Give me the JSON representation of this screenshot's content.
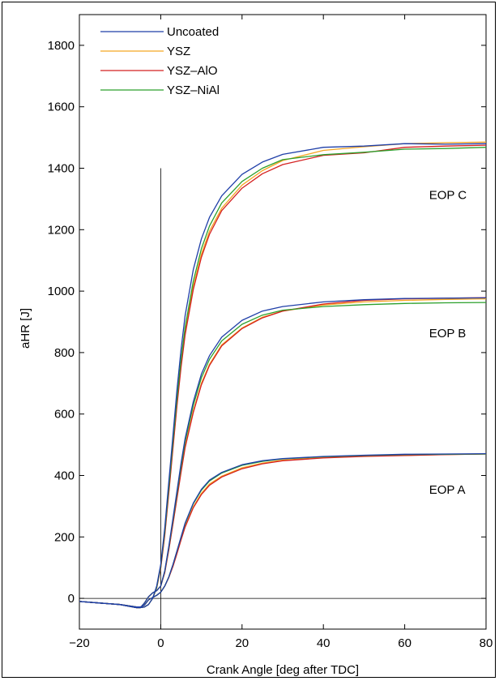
{
  "chart_data": {
    "type": "line",
    "xlabel": "Crank Angle [deg after TDC]",
    "ylabel": "aHR [J]",
    "xlim": [
      -20,
      80
    ],
    "ylim": [
      -100,
      1900
    ],
    "xticks": [
      -20,
      0,
      20,
      40,
      60,
      80
    ],
    "yticks": [
      0,
      200,
      400,
      600,
      800,
      1000,
      1200,
      1400,
      1600,
      1800
    ],
    "grid": false,
    "legend_position": "top-left",
    "reference_lines": [
      {
        "orientation": "horizontal",
        "value": 0
      },
      {
        "orientation": "vertical",
        "value": 0,
        "y_range": [
          -100,
          1400
        ]
      }
    ],
    "annotations": [
      {
        "text": "EOP C",
        "x": 66,
        "y": 1300
      },
      {
        "text": "EOP B",
        "x": 66,
        "y": 850
      },
      {
        "text": "EOP A",
        "x": 66,
        "y": 340
      }
    ],
    "series": [
      {
        "name": "Uncoated",
        "color": "#1f3fa8",
        "group": "EOP A",
        "x": [
          -20,
          -10,
          -6,
          -5,
          -4,
          -3,
          -2,
          -1,
          0,
          1,
          2,
          3,
          4,
          5,
          6,
          8,
          10,
          12,
          15,
          20,
          25,
          30,
          40,
          50,
          60,
          70,
          80
        ],
        "y": [
          -10,
          -20,
          -28,
          -28,
          -22,
          -5,
          3,
          10,
          20,
          40,
          70,
          110,
          155,
          200,
          245,
          310,
          355,
          385,
          410,
          435,
          448,
          455,
          462,
          466,
          469,
          470,
          471
        ]
      },
      {
        "name": "YSZ",
        "color": "#f5a623",
        "group": "EOP A",
        "x": [
          -20,
          -10,
          -6,
          -5,
          -4,
          -3,
          -2,
          -1,
          0,
          1,
          2,
          3,
          4,
          5,
          6,
          8,
          10,
          12,
          15,
          20,
          25,
          30,
          40,
          50,
          60,
          70,
          80
        ],
        "y": [
          -10,
          -20,
          -28,
          -28,
          -22,
          -5,
          3,
          10,
          20,
          40,
          68,
          105,
          148,
          192,
          235,
          298,
          342,
          372,
          398,
          425,
          440,
          450,
          458,
          463,
          466,
          468,
          470
        ]
      },
      {
        "name": "YSZ–AlO",
        "color": "#d42020",
        "group": "EOP A",
        "x": [
          -20,
          -10,
          -6,
          -5,
          -4,
          -3,
          -2,
          -1,
          0,
          1,
          2,
          3,
          4,
          5,
          6,
          8,
          10,
          12,
          15,
          20,
          25,
          30,
          40,
          50,
          60,
          70,
          80
        ],
        "y": [
          -10,
          -20,
          -28,
          -28,
          -22,
          -5,
          3,
          10,
          20,
          40,
          68,
          104,
          146,
          190,
          232,
          295,
          338,
          368,
          395,
          422,
          438,
          448,
          457,
          462,
          465,
          468,
          470
        ]
      },
      {
        "name": "YSZ–NiAl",
        "color": "#2ca02c",
        "group": "EOP A",
        "x": [
          -20,
          -10,
          -6,
          -5,
          -4,
          -3,
          -2,
          -1,
          0,
          1,
          2,
          3,
          4,
          5,
          6,
          8,
          10,
          12,
          15,
          20,
          25,
          30,
          40,
          50,
          60,
          70,
          80
        ],
        "y": [
          -10,
          -20,
          -28,
          -28,
          -22,
          -5,
          3,
          10,
          20,
          40,
          70,
          110,
          154,
          199,
          243,
          308,
          352,
          382,
          408,
          433,
          446,
          454,
          461,
          465,
          468,
          469,
          470
        ]
      },
      {
        "name": "",
        "color": "#1f3fa8",
        "group": "EOP B",
        "x": [
          -20,
          -10,
          -6,
          -5,
          -4,
          -3,
          -2,
          -1,
          0,
          1,
          2,
          3,
          4,
          5,
          6,
          8,
          10,
          12,
          15,
          20,
          25,
          30,
          40,
          50,
          60,
          70,
          80
        ],
        "y": [
          -10,
          -20,
          -30,
          -30,
          -15,
          5,
          18,
          25,
          40,
          90,
          170,
          260,
          350,
          440,
          520,
          640,
          730,
          790,
          850,
          905,
          935,
          950,
          965,
          972,
          976,
          977,
          978
        ]
      },
      {
        "name": "",
        "color": "#f5a623",
        "group": "EOP B",
        "x": [
          -20,
          -10,
          -6,
          -5,
          -4,
          -3,
          -2,
          -1,
          0,
          1,
          2,
          3,
          4,
          5,
          6,
          8,
          10,
          12,
          15,
          20,
          25,
          30,
          40,
          50,
          60,
          70,
          80
        ],
        "y": [
          -10,
          -20,
          -30,
          -30,
          -15,
          5,
          18,
          25,
          40,
          85,
          160,
          245,
          330,
          415,
          495,
          610,
          700,
          762,
          825,
          880,
          915,
          935,
          955,
          965,
          970,
          973,
          975
        ]
      },
      {
        "name": "",
        "color": "#d42020",
        "group": "EOP B",
        "x": [
          -20,
          -10,
          -6,
          -5,
          -4,
          -3,
          -2,
          -1,
          0,
          1,
          2,
          3,
          4,
          5,
          6,
          8,
          10,
          12,
          15,
          20,
          25,
          30,
          40,
          50,
          60,
          70,
          80
        ],
        "y": [
          -10,
          -20,
          -30,
          -30,
          -15,
          5,
          18,
          25,
          40,
          84,
          158,
          242,
          326,
          410,
          490,
          605,
          695,
          758,
          822,
          878,
          913,
          935,
          958,
          970,
          975,
          977,
          979
        ]
      },
      {
        "name": "",
        "color": "#2ca02c",
        "group": "EOP B",
        "x": [
          -20,
          -10,
          -6,
          -5,
          -4,
          -3,
          -2,
          -1,
          0,
          1,
          2,
          3,
          4,
          5,
          6,
          8,
          10,
          12,
          15,
          20,
          25,
          30,
          40,
          50,
          60,
          70,
          80
        ],
        "y": [
          -10,
          -20,
          -30,
          -30,
          -15,
          5,
          18,
          25,
          40,
          88,
          166,
          254,
          342,
          430,
          510,
          628,
          718,
          778,
          838,
          892,
          922,
          938,
          950,
          956,
          960,
          962,
          963
        ]
      },
      {
        "name": "",
        "color": "#1f3fa8",
        "group": "EOP C",
        "x": [
          -20,
          -10,
          -6,
          -5,
          -4,
          -3,
          -2,
          -1,
          0,
          1,
          2,
          3,
          4,
          5,
          6,
          8,
          10,
          12,
          15,
          20,
          25,
          30,
          40,
          50,
          60,
          70,
          80
        ],
        "y": [
          -10,
          -20,
          -30,
          -30,
          -28,
          -20,
          0,
          40,
          110,
          230,
          380,
          530,
          680,
          810,
          920,
          1070,
          1170,
          1240,
          1310,
          1380,
          1420,
          1445,
          1468,
          1472,
          1480,
          1478,
          1480
        ]
      },
      {
        "name": "",
        "color": "#f5a623",
        "group": "EOP C",
        "x": [
          -20,
          -10,
          -6,
          -5,
          -4,
          -3,
          -2,
          -1,
          0,
          1,
          2,
          3,
          4,
          5,
          6,
          8,
          10,
          12,
          15,
          20,
          25,
          30,
          40,
          50,
          60,
          70,
          80
        ],
        "y": [
          -10,
          -20,
          -30,
          -30,
          -28,
          -20,
          0,
          35,
          100,
          210,
          350,
          495,
          635,
          760,
          865,
          1015,
          1120,
          1195,
          1270,
          1345,
          1392,
          1425,
          1458,
          1470,
          1480,
          1483,
          1485
        ]
      },
      {
        "name": "",
        "color": "#d42020",
        "group": "EOP C",
        "x": [
          -20,
          -10,
          -6,
          -5,
          -4,
          -3,
          -2,
          -1,
          0,
          1,
          2,
          3,
          4,
          5,
          6,
          8,
          10,
          12,
          15,
          20,
          25,
          30,
          40,
          50,
          60,
          70,
          80
        ],
        "y": [
          -10,
          -20,
          -30,
          -30,
          -28,
          -20,
          0,
          34,
          98,
          205,
          343,
          488,
          628,
          752,
          857,
          1005,
          1110,
          1185,
          1262,
          1335,
          1382,
          1412,
          1442,
          1450,
          1468,
          1472,
          1475
        ]
      },
      {
        "name": "",
        "color": "#2ca02c",
        "group": "EOP C",
        "x": [
          -20,
          -10,
          -6,
          -5,
          -4,
          -3,
          -2,
          -1,
          0,
          1,
          2,
          3,
          4,
          5,
          6,
          8,
          10,
          12,
          15,
          20,
          25,
          30,
          40,
          50,
          60,
          70,
          80
        ],
        "y": [
          -10,
          -20,
          -30,
          -30,
          -28,
          -20,
          0,
          36,
          104,
          218,
          362,
          510,
          652,
          778,
          882,
          1032,
          1138,
          1212,
          1287,
          1357,
          1400,
          1428,
          1444,
          1452,
          1462,
          1464,
          1468
        ]
      }
    ]
  }
}
